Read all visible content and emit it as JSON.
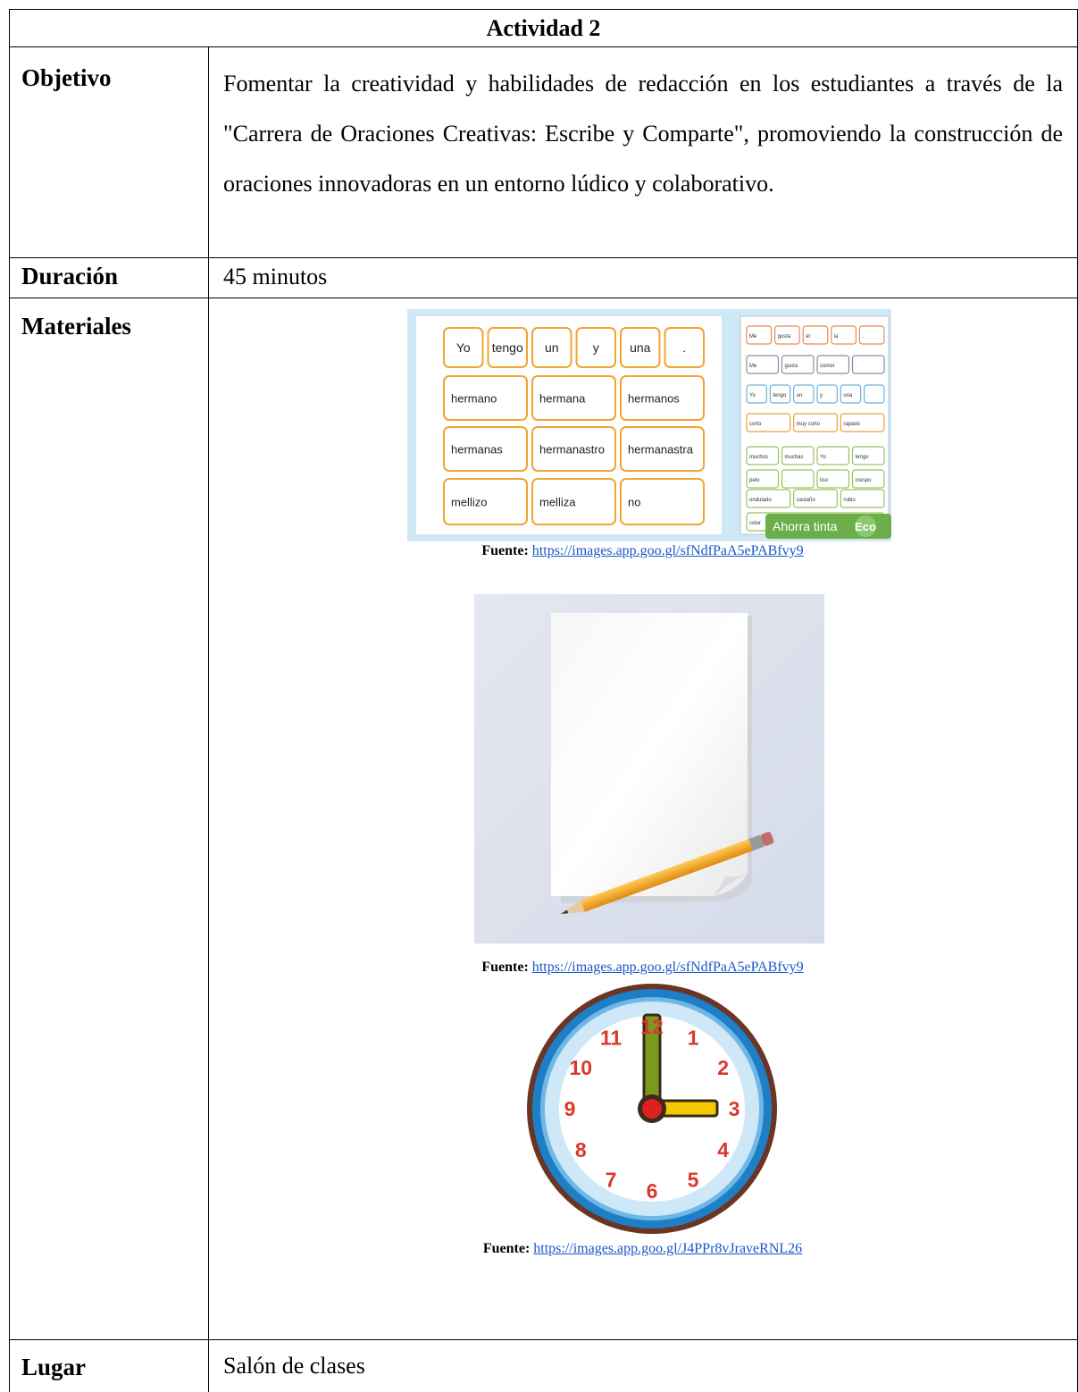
{
  "table": {
    "title": "Actividad 2",
    "objetivo": {
      "label": "Objetivo",
      "text": "Fomentar la creatividad y habilidades de redacción en los estudiantes a través de la \"Carrera de Oraciones Creativas: Escribe y Comparte\", promoviendo la construcción de oraciones innovadoras en un entorno lúdico y colaborativo."
    },
    "duracion": {
      "label": "Duración",
      "text": "45 minutos"
    },
    "materiales": {
      "label": "Materiales",
      "figures": [
        {
          "source_label": "Fuente:",
          "source_url": "https://images.app.goo.gl/sfNdfPaA5ePABfvy9"
        },
        {
          "source_label": "Fuente:",
          "source_url": "https://images.app.goo.gl/sfNdfPaA5ePABfvy9"
        },
        {
          "source_label": "Fuente:",
          "source_url": "https://images.app.goo.gl/J4PPr8vJraveRNL26"
        }
      ]
    },
    "lugar": {
      "label": "Lugar",
      "text": "Salón de clases"
    }
  },
  "flashcards": {
    "main_rows": [
      [
        "Yo",
        "tengo",
        "un",
        "y",
        "una",
        "."
      ],
      [
        "hermano",
        "hermana",
        "hermanos"
      ],
      [
        "hermanas",
        "hermanastro",
        "hermanastra"
      ],
      [
        "mellizo",
        "melliza",
        "no"
      ]
    ],
    "side_rows": [
      [
        "Me",
        "gusta",
        "el",
        "la",
        "."
      ],
      [
        "Me",
        "gusta",
        "comer",
        "."
      ],
      [
        "Yo",
        "tengo",
        "un",
        "y",
        "una",
        "."
      ],
      [
        "corto",
        "muy corto",
        "rapado"
      ],
      [
        "muchos",
        "muchas",
        "Yo",
        "tengo"
      ],
      [
        "pelo",
        ".",
        "liso",
        "crespo"
      ],
      [
        "ondulado",
        "castaño",
        "rubio"
      ],
      [
        "color"
      ]
    ],
    "badge": "Ahorra tinta",
    "badge_tag": "Eco"
  },
  "clock": {
    "numerals": [
      "12",
      "1",
      "2",
      "3",
      "4",
      "5",
      "6",
      "7",
      "8",
      "9",
      "10",
      "11"
    ]
  }
}
